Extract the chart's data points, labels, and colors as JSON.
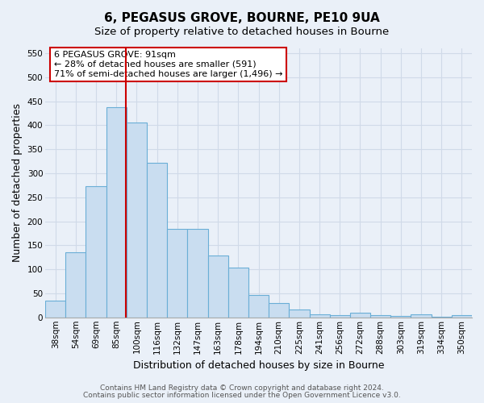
{
  "title": "6, PEGASUS GROVE, BOURNE, PE10 9UA",
  "subtitle": "Size of property relative to detached houses in Bourne",
  "xlabel": "Distribution of detached houses by size in Bourne",
  "ylabel": "Number of detached properties",
  "bar_labels": [
    "38sqm",
    "54sqm",
    "69sqm",
    "85sqm",
    "100sqm",
    "116sqm",
    "132sqm",
    "147sqm",
    "163sqm",
    "178sqm",
    "194sqm",
    "210sqm",
    "225sqm",
    "241sqm",
    "256sqm",
    "272sqm",
    "288sqm",
    "303sqm",
    "319sqm",
    "334sqm",
    "350sqm"
  ],
  "bar_values": [
    35,
    135,
    273,
    437,
    406,
    322,
    185,
    185,
    128,
    104,
    46,
    30,
    17,
    7,
    5,
    9,
    4,
    3,
    6,
    2,
    5
  ],
  "bar_color": "#c9ddf0",
  "bar_edge_color": "#6aaed6",
  "vline_color": "#cc0000",
  "vline_x": 3.47,
  "annotation_title": "6 PEGASUS GROVE: 91sqm",
  "annotation_line1": "← 28% of detached houses are smaller (591)",
  "annotation_line2": "71% of semi-detached houses are larger (1,496) →",
  "annotation_box_color": "#ffffff",
  "annotation_box_edge": "#cc0000",
  "ylim": [
    0,
    560
  ],
  "yticks": [
    0,
    50,
    100,
    150,
    200,
    250,
    300,
    350,
    400,
    450,
    500,
    550
  ],
  "footer1": "Contains HM Land Registry data © Crown copyright and database right 2024.",
  "footer2": "Contains public sector information licensed under the Open Government Licence v3.0.",
  "bg_color": "#eaf0f8",
  "grid_color": "#d0dae8",
  "fig_bg_color": "#eaf0f8",
  "title_fontsize": 11,
  "subtitle_fontsize": 9.5,
  "axis_label_fontsize": 9,
  "tick_fontsize": 7.5,
  "footer_fontsize": 6.5,
  "ann_fontsize": 8
}
